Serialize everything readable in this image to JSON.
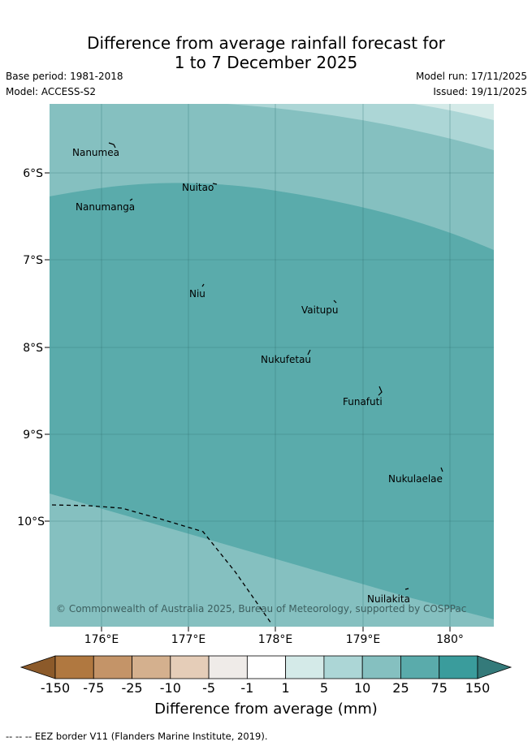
{
  "title": {
    "line1": "Difference from average rainfall forecast for",
    "line2": "1 to 7 December 2025"
  },
  "meta": {
    "base_period": "Base period: 1981-2018",
    "model": "Model: ACCESS-S2",
    "model_run": "Model run: 17/11/2025",
    "issued": "Issued: 19/11/2025"
  },
  "map": {
    "lat_labels": [
      "6°S",
      "7°S",
      "8°S",
      "9°S",
      "10°S"
    ],
    "lon_labels": [
      "176°E",
      "177°E",
      "178°E",
      "179°E",
      "180°"
    ],
    "places": [
      "Nanumea",
      "Nuitao",
      "Nanumanga",
      "Niu",
      "Vaitupu",
      "Nukufetau",
      "Funafuti",
      "Nukulaelae",
      "Nuilakita"
    ],
    "copyright": "© Commonwealth of Australia 2025, Bureau of Meteorology, supported by COSPPac"
  },
  "colorbar": {
    "ticks": [
      "-150",
      "-75",
      "-25",
      "-10",
      "-5",
      "-1",
      "1",
      "5",
      "10",
      "25",
      "75",
      "150"
    ],
    "colors": [
      "#8c5a2a",
      "#b07840",
      "#c49468",
      "#d4b08e",
      "#e5cdb8",
      "#efebe8",
      "#ffffff",
      "#d4eae8",
      "#acd6d6",
      "#85c0c0",
      "#5aabab",
      "#3a9c9c",
      "#347a7a"
    ],
    "title": "Difference from average (mm)"
  },
  "footer": "--  --  -- EEZ border V11 (Flanders Marine Institute, 2019)."
}
